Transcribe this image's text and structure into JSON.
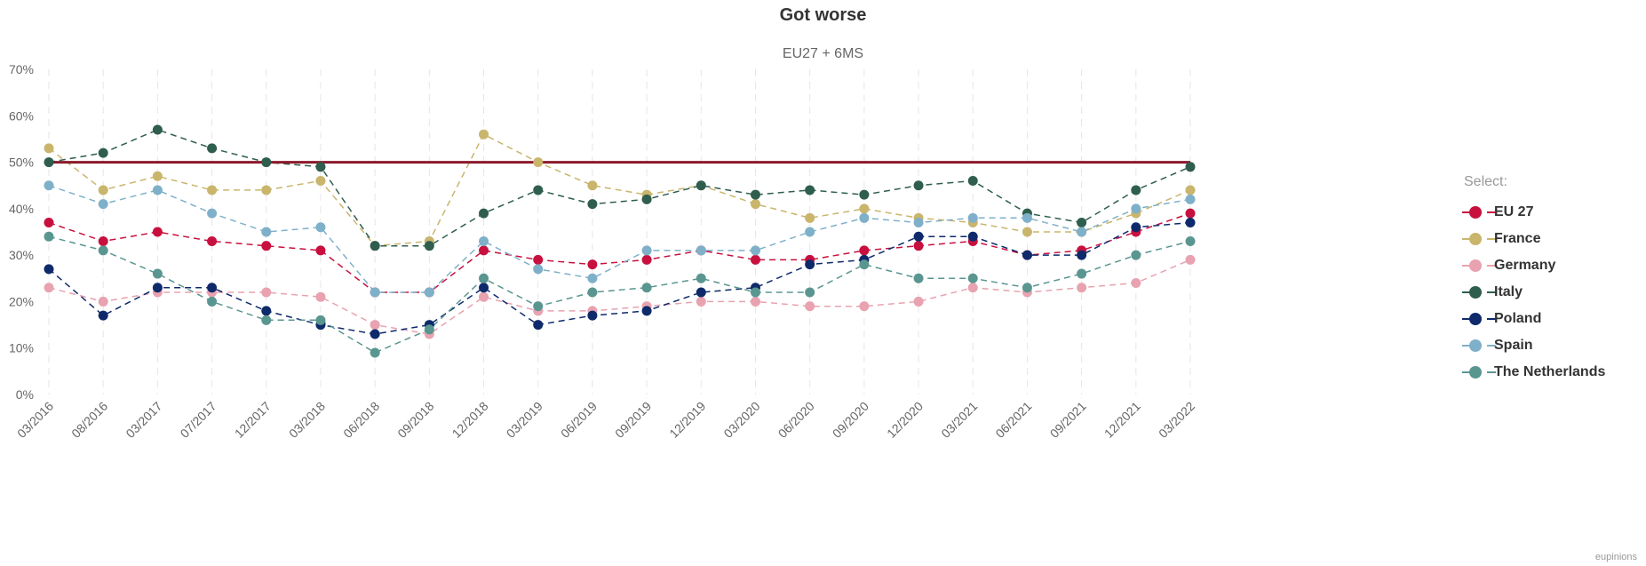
{
  "chart_data": {
    "type": "line",
    "title": "Got worse",
    "subtitle": "EU27 + 6MS",
    "xlabel": "",
    "ylabel": "",
    "ylim": [
      0,
      70
    ],
    "y_ticks": [
      "0%",
      "10%",
      "20%",
      "30%",
      "40%",
      "50%",
      "60%",
      "70%"
    ],
    "y_tick_values": [
      0,
      10,
      20,
      30,
      40,
      50,
      60,
      70
    ],
    "grid": "vertical dashed",
    "legend_title": "Select:",
    "legend_position": "right",
    "credits": "eupinions",
    "reference_line": {
      "value": 50,
      "color": "#8b1a2b"
    },
    "categories": [
      "03/2016",
      "08/2016",
      "03/2017",
      "07/2017",
      "12/2017",
      "03/2018",
      "06/2018",
      "09/2018",
      "12/2018",
      "03/2019",
      "06/2019",
      "09/2019",
      "12/2019",
      "03/2020",
      "06/2020",
      "09/2020",
      "12/2020",
      "03/2021",
      "06/2021",
      "09/2021",
      "12/2021",
      "03/2022"
    ],
    "series": [
      {
        "name": "EU 27",
        "color": "#c8103e",
        "values": [
          37,
          33,
          35,
          33,
          32,
          31,
          22,
          22,
          31,
          29,
          28,
          29,
          31,
          29,
          29,
          31,
          32,
          33,
          30,
          31,
          35,
          39
        ]
      },
      {
        "name": "France",
        "color": "#c9b56c",
        "values": [
          53,
          44,
          47,
          44,
          44,
          46,
          32,
          33,
          56,
          50,
          45,
          43,
          45,
          41,
          38,
          40,
          38,
          37,
          35,
          35,
          39,
          44
        ]
      },
      {
        "name": "Germany",
        "color": "#e8a2b0",
        "values": [
          23,
          20,
          22,
          22,
          22,
          21,
          15,
          13,
          21,
          18,
          18,
          19,
          20,
          20,
          19,
          19,
          20,
          23,
          22,
          23,
          24,
          29
        ]
      },
      {
        "name": "Italy",
        "color": "#2f5e4e",
        "values": [
          50,
          52,
          57,
          53,
          50,
          49,
          32,
          32,
          39,
          44,
          41,
          42,
          45,
          43,
          44,
          43,
          45,
          46,
          39,
          37,
          44,
          49
        ]
      },
      {
        "name": "Poland",
        "color": "#0e2a6b",
        "values": [
          27,
          17,
          23,
          23,
          18,
          15,
          13,
          15,
          23,
          15,
          17,
          18,
          22,
          23,
          28,
          29,
          34,
          34,
          30,
          30,
          36,
          37
        ]
      },
      {
        "name": "Spain",
        "color": "#7fb0c9",
        "values": [
          45,
          41,
          44,
          39,
          35,
          36,
          22,
          22,
          33,
          27,
          25,
          31,
          31,
          31,
          35,
          38,
          37,
          38,
          38,
          35,
          40,
          42
        ]
      },
      {
        "name": "The Netherlands",
        "color": "#5a9690",
        "values": [
          34,
          31,
          26,
          20,
          16,
          16,
          9,
          14,
          25,
          19,
          22,
          23,
          25,
          22,
          22,
          28,
          25,
          25,
          23,
          26,
          30,
          33
        ]
      }
    ]
  }
}
